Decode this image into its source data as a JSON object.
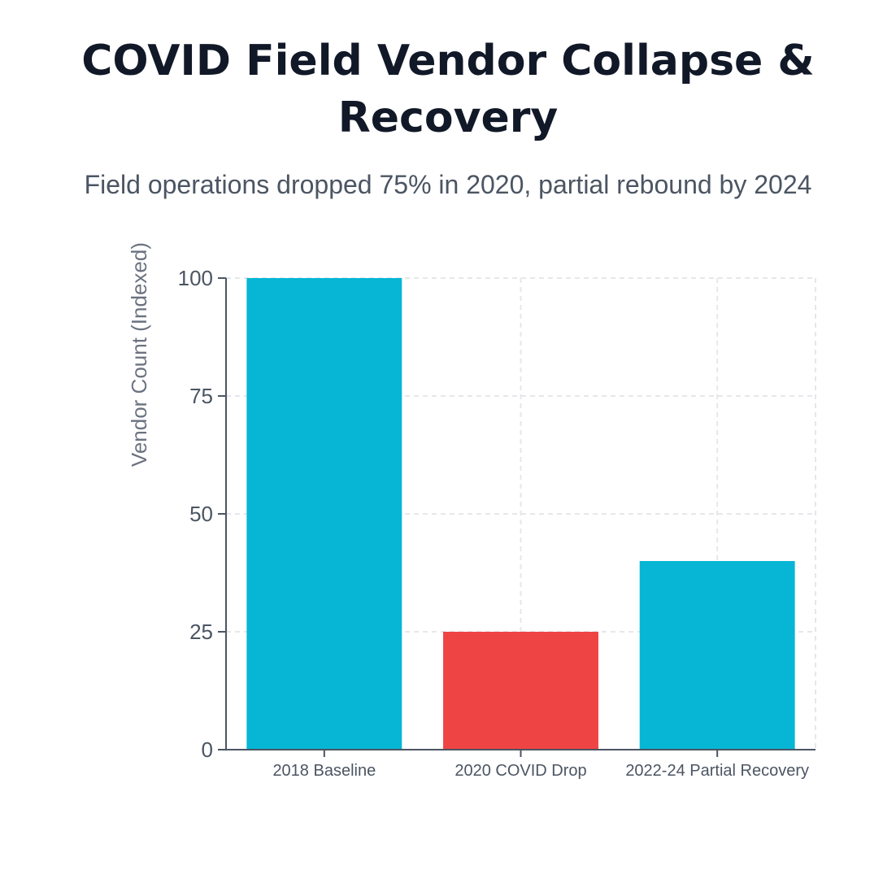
{
  "header": {
    "title": "COVID Field Vendor Collapse & Recovery",
    "subtitle": "Field operations dropped 75% in 2020, partial rebound by 2024"
  },
  "colors": {
    "normal": "#06b6d4",
    "drop": "#ef4444",
    "grid": "#e5e7eb",
    "axis": "#4b5563"
  },
  "chart_data": {
    "type": "bar",
    "title": "COVID Field Vendor Collapse & Recovery",
    "subtitle": "Field operations dropped 75% in 2020, partial rebound by 2024",
    "categories": [
      "2018 Baseline",
      "2020 COVID Drop",
      "2022-24 Partial Recovery"
    ],
    "values": [
      100,
      25,
      40
    ],
    "bar_colors": [
      "#06b6d4",
      "#ef4444",
      "#06b6d4"
    ],
    "xlabel": "",
    "ylabel": "Vendor Count (Indexed)",
    "ylim": [
      0,
      100
    ],
    "yticks": [
      0,
      25,
      50,
      75,
      100
    ],
    "grid": true,
    "legend": "none"
  }
}
